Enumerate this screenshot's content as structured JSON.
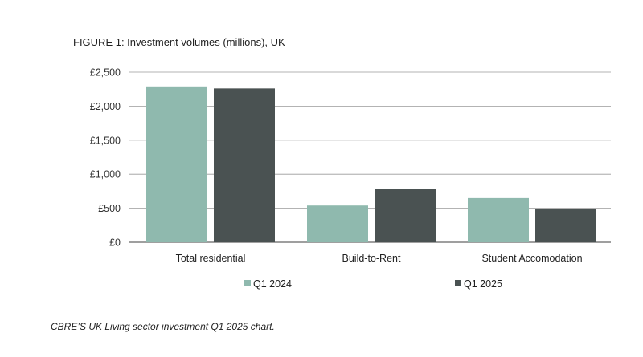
{
  "figure_title": "FIGURE 1: Investment volumes (millions), UK",
  "caption": "CBRE’S UK Living sector investment Q1 2025 chart.",
  "chart_data": {
    "type": "bar",
    "title": "FIGURE 1: Investment volumes (millions), UK",
    "xlabel": "",
    "ylabel": "",
    "categories": [
      "Total residential",
      "Build-to-Rent",
      "Student Accomodation"
    ],
    "series": [
      {
        "name": "Q1 2024",
        "values": [
          2290,
          540,
          650
        ],
        "color": "#8fb9ae"
      },
      {
        "name": "Q1 2025",
        "values": [
          2260,
          780,
          490
        ],
        "color": "#4a5252"
      }
    ],
    "ylim": [
      0,
      2500
    ],
    "yticks": [
      0,
      500,
      1000,
      1500,
      2000,
      2500
    ],
    "ytick_labels": [
      "£0",
      "£500",
      "£1,000",
      "£1,500",
      "£2,000",
      "£2,500"
    ],
    "grid": true,
    "legend_position": "bottom"
  }
}
